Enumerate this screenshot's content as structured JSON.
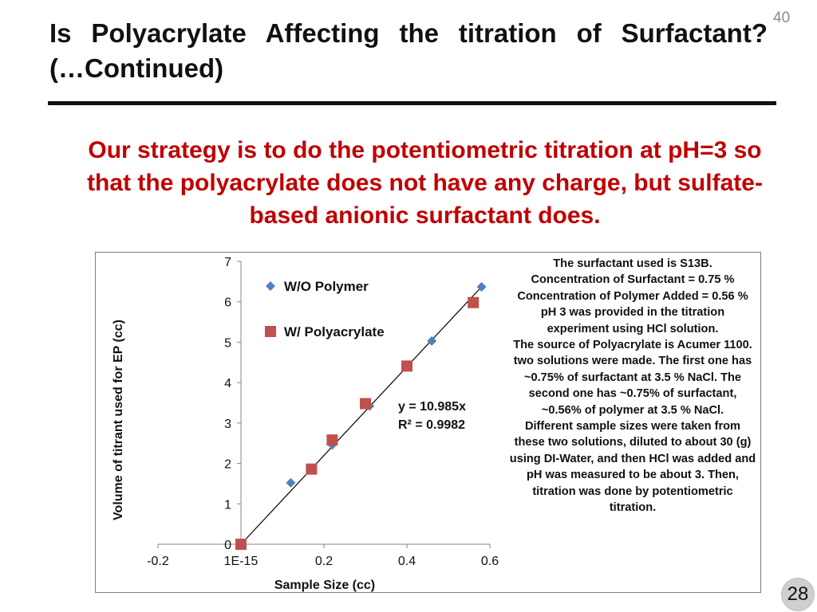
{
  "slide": {
    "title_line1": "Is Polyacrylate Affecting the titration of Surfactant?",
    "title_line2": "(…Continued)",
    "slide_number": "40",
    "page_number": "28",
    "strategy_text": "Our strategy is to do the potentiometric titration at pH=3 so that the polyacrylate does not have any charge, but sulfate-based anionic surfactant does."
  },
  "notes": [
    "The surfactant used is S13B.",
    "Concentration of Surfactant = 0.75 %",
    "Concentration of Polymer Added = 0.56 %",
    "pH 3 was provided in the titration experiment using HCl solution.",
    "The source of Polyacrylate is Acumer 1100.",
    "two solutions were made. The first one has ~0.75% of surfactant at 3.5 % NaCl. The second one has ~0.75% of surfactant, ~0.56% of polymer at 3.5 % NaCl.",
    "Different sample sizes were taken from these two solutions, diluted to about 30 (g) using DI-Water, and then HCl was added and pH was measured to be about 3. Then, titration was done by potentiometric titration."
  ],
  "chart_data": {
    "type": "scatter",
    "xlabel": "Sample Size (cc)",
    "ylabel": "Volume of titrant used for EP (cc)",
    "xlim": [
      -0.2,
      0.6
    ],
    "ylim": [
      0,
      7
    ],
    "x_ticks": [
      -0.2,
      0,
      0.2,
      0.4,
      0.6
    ],
    "x_tick_labels": [
      "-0.2",
      "1E-15",
      "0.2",
      "0.4",
      "0.6"
    ],
    "y_ticks": [
      0,
      1,
      2,
      3,
      4,
      5,
      6,
      7
    ],
    "y_tick_labels": [
      "0",
      "1",
      "2",
      "3",
      "4",
      "5",
      "6",
      "7"
    ],
    "legend_placement": "top-left",
    "grid": false,
    "series": [
      {
        "name": "W/O Polymer",
        "marker": "diamond",
        "color": "#4f81bd",
        "x": [
          0.12,
          0.22,
          0.31,
          0.46,
          0.58
        ],
        "y": [
          1.52,
          2.46,
          3.42,
          5.03,
          6.37
        ]
      },
      {
        "name": "W/ Polyacrylate",
        "marker": "square",
        "color": "#c0504d",
        "x": [
          0,
          0.17,
          0.22,
          0.3,
          0.4,
          0.56
        ],
        "y": [
          0,
          1.86,
          2.58,
          3.48,
          4.41,
          5.98
        ]
      }
    ],
    "trendline": {
      "slope": 10.985,
      "color": "#000000",
      "equation": "y = 10.985x",
      "r_squared": "R² = 0.9982"
    }
  }
}
